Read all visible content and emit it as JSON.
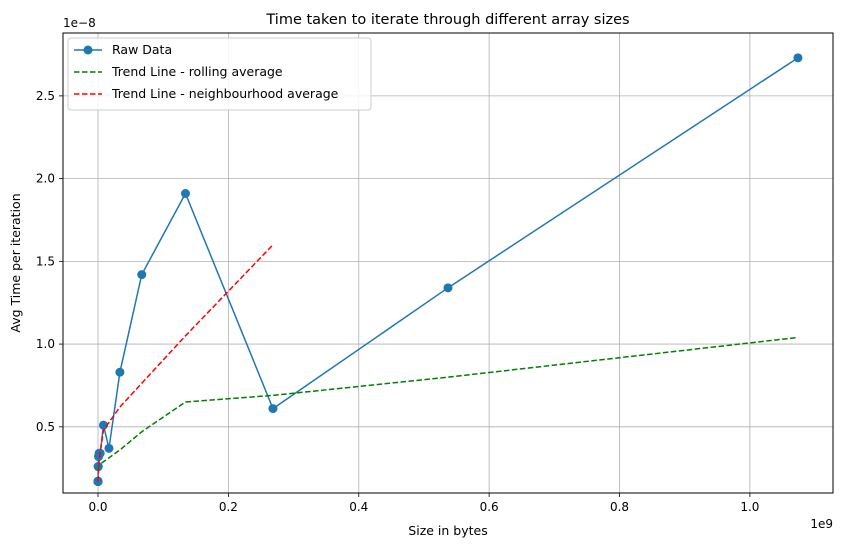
{
  "chart_data": {
    "type": "line",
    "title": "Time taken to iterate through different array sizes",
    "xlabel": "Size in bytes",
    "ylabel": "Avg Time per iteration",
    "x_offset_label": "1e9",
    "y_offset_label": "1e−8",
    "x_scale": 1000000000.0,
    "y_scale": 1e-08,
    "xlim": [
      -0.0537,
      1.1275
    ],
    "ylim": [
      0.1,
      2.88
    ],
    "x_ticks": [
      0.0,
      0.2,
      0.4,
      0.6,
      0.8,
      1.0
    ],
    "x_tick_labels": [
      "0.0",
      "0.2",
      "0.4",
      "0.6",
      "0.8",
      "1.0"
    ],
    "y_ticks": [
      0.5,
      1.0,
      1.5,
      2.0,
      2.5
    ],
    "y_tick_labels": [
      "0.5",
      "1.0",
      "1.5",
      "2.0",
      "2.5"
    ],
    "grid": true,
    "legend_position": "top-left",
    "series": [
      {
        "name": "Raw Data",
        "style": "solid",
        "marker": "circle",
        "color": "#1f77b4",
        "x": [
          1e-07,
          2e-07,
          4e-07,
          8e-07,
          1.6e-06,
          3.3e-06,
          6.6e-06,
          1.3e-05,
          2.6e-05,
          5.2e-05,
          0.000105,
          0.00021,
          0.00042,
          0.00084,
          0.0017,
          0.0034,
          0.0084,
          0.0168,
          0.0336,
          0.0671,
          0.1342,
          0.2684,
          0.5369,
          1.0737
        ],
        "y": [
          0.17,
          0.17,
          0.17,
          0.17,
          0.17,
          0.17,
          0.17,
          0.17,
          0.17,
          0.17,
          0.17,
          0.26,
          0.26,
          0.32,
          0.34,
          0.34,
          0.51,
          0.37,
          0.83,
          1.42,
          1.91,
          0.61,
          1.34,
          2.73
        ]
      },
      {
        "name": "Trend Line - rolling average",
        "style": "dashed",
        "color": "#008000",
        "x": [
          1e-07,
          0.0017,
          0.0336,
          0.0671,
          0.1342,
          0.2684,
          0.5369,
          1.0737
        ],
        "y": [
          0.24,
          0.27,
          0.36,
          0.47,
          0.65,
          0.69,
          0.8,
          1.04
        ]
      },
      {
        "name": "Trend Line - neighbourhood average",
        "style": "dashed",
        "color": "#ff0000",
        "x": [
          1e-07,
          0.0017,
          0.0084,
          0.0336,
          0.1342,
          0.2684
        ],
        "y": [
          0.17,
          0.3,
          0.48,
          0.62,
          1.05,
          1.6
        ]
      }
    ]
  }
}
